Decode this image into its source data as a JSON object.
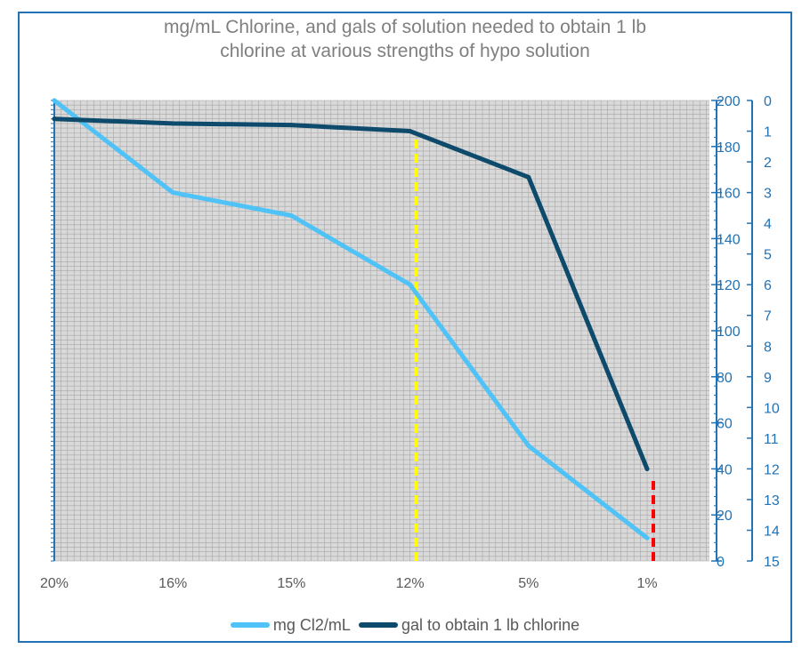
{
  "chart_data": {
    "type": "line",
    "title_lines": [
      "mg/mL Chlorine, and gals of solution needed to obtain 1 lb",
      "chlorine at various strengths of hypo solution"
    ],
    "categories": [
      "20%",
      "16%",
      "15%",
      "12%",
      "5%",
      "1%"
    ],
    "series": [
      {
        "name": "mg Cl2/mL",
        "axis": "right_inner",
        "color": "#4fc3f7",
        "values": [
          200,
          160,
          150,
          120,
          50,
          10
        ]
      },
      {
        "name": "gal to obtain 1 lb chlorine",
        "axis": "right_outer",
        "color": "#0d4a6b",
        "values": [
          0.6,
          0.75,
          0.8,
          1.0,
          2.5,
          12.0
        ]
      }
    ],
    "axes": {
      "right_inner": {
        "min": 0,
        "max": 200,
        "ticks": [
          0,
          20,
          40,
          60,
          80,
          100,
          120,
          140,
          160,
          180,
          200
        ],
        "reversed": false
      },
      "right_outer": {
        "min": 0,
        "max": 15,
        "ticks": [
          0,
          1,
          2,
          3,
          4,
          5,
          6,
          7,
          8,
          9,
          10,
          11,
          12,
          13,
          14,
          15
        ],
        "reversed": true
      }
    },
    "markers": [
      {
        "category": "12%",
        "color": "#ffff00",
        "from_value": 0,
        "to_value": 186
      },
      {
        "category": "1%",
        "color": "#ff0000",
        "from_value": 0,
        "to_value": 37
      }
    ],
    "grid": true,
    "legend_position": "bottom",
    "colors": {
      "frame": "#2173b6",
      "axis": "#2173b6",
      "plot_bg": "#d9d9d9",
      "grid": "#a6a6a6",
      "axis_text": "#2173b6",
      "title_text": "#7f7f7f",
      "legend_text": "#595959"
    }
  }
}
